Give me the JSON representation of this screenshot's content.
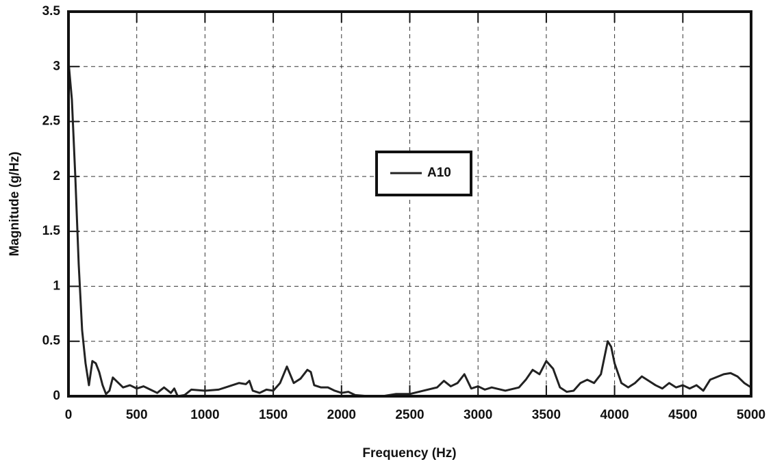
{
  "chart_data": {
    "type": "line",
    "x_label": "Frequency (Hz)",
    "y_label": "Magnitude (g/Hz)",
    "x": [
      0,
      25,
      50,
      75,
      100,
      125,
      150,
      175,
      200,
      225,
      250,
      275,
      300,
      325,
      350,
      400,
      450,
      500,
      550,
      600,
      650,
      700,
      750,
      775,
      800,
      850,
      900,
      1000,
      1100,
      1150,
      1200,
      1250,
      1300,
      1325,
      1350,
      1400,
      1450,
      1500,
      1550,
      1600,
      1650,
      1700,
      1750,
      1775,
      1800,
      1850,
      1900,
      1950,
      2000,
      2050,
      2100,
      2200,
      2300,
      2400,
      2500,
      2600,
      2700,
      2750,
      2800,
      2850,
      2900,
      2950,
      3000,
      3050,
      3100,
      3200,
      3300,
      3350,
      3400,
      3450,
      3500,
      3550,
      3600,
      3650,
      3700,
      3750,
      3800,
      3850,
      3900,
      3950,
      3975,
      4000,
      4050,
      4100,
      4150,
      4200,
      4250,
      4300,
      4350,
      4400,
      4450,
      4500,
      4550,
      4600,
      4650,
      4700,
      4800,
      4850,
      4900,
      4950,
      5000
    ],
    "series": [
      {
        "name": "A10",
        "color": "#222222",
        "values": [
          3.05,
          2.7,
          2.0,
          1.2,
          0.6,
          0.3,
          0.1,
          0.32,
          0.3,
          0.22,
          0.1,
          0.02,
          0.05,
          0.17,
          0.14,
          0.08,
          0.1,
          0.07,
          0.09,
          0.06,
          0.03,
          0.08,
          0.03,
          0.07,
          0.0,
          0.01,
          0.06,
          0.05,
          0.06,
          0.08,
          0.1,
          0.12,
          0.11,
          0.14,
          0.05,
          0.03,
          0.06,
          0.05,
          0.12,
          0.27,
          0.12,
          0.16,
          0.24,
          0.22,
          0.1,
          0.08,
          0.08,
          0.05,
          0.03,
          0.04,
          0.01,
          0.0,
          0.0,
          0.02,
          0.02,
          0.05,
          0.08,
          0.14,
          0.09,
          0.12,
          0.2,
          0.07,
          0.09,
          0.06,
          0.08,
          0.05,
          0.08,
          0.15,
          0.24,
          0.2,
          0.32,
          0.25,
          0.08,
          0.04,
          0.05,
          0.12,
          0.15,
          0.12,
          0.2,
          0.5,
          0.45,
          0.3,
          0.12,
          0.08,
          0.12,
          0.18,
          0.14,
          0.1,
          0.07,
          0.12,
          0.08,
          0.1,
          0.07,
          0.1,
          0.05,
          0.15,
          0.2,
          0.21,
          0.18,
          0.12,
          0.08
        ]
      }
    ],
    "xlim": [
      0,
      5000
    ],
    "xticks": [
      0,
      500,
      1000,
      1500,
      2000,
      2500,
      3000,
      3500,
      4000,
      4500,
      5000
    ],
    "ylim": [
      0,
      3.5
    ],
    "yticks": [
      0,
      0.5,
      1,
      1.5,
      2,
      2.5,
      3,
      3.5
    ],
    "grid": true
  }
}
